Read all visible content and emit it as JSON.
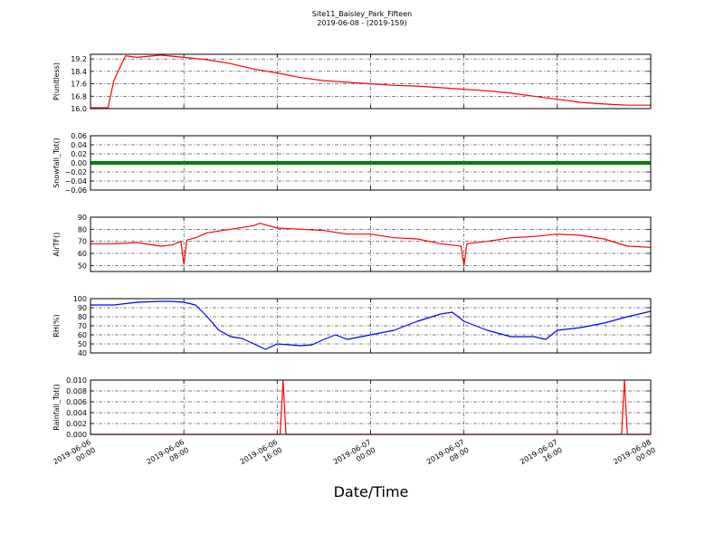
{
  "figure": {
    "title_line1": "Site11_Baisley_Park_Fifteen",
    "title_line2": "2019-06-08 - (2019-159)",
    "xlabel": "Date/Time"
  },
  "chart_data": {
    "type": "line",
    "x_range": [
      "2019-06-06 00:00",
      "2019-06-08 00:00"
    ],
    "x_ticks": [
      "2019-06-06 00:00",
      "2019-06-06 08:00",
      "2019-06-06 16:00",
      "2019-06-07 00:00",
      "2019-06-07 08:00",
      "2019-06-07 16:00",
      "2019-06-08 00:00"
    ],
    "x_tick_labels": [
      [
        "2019-06-06",
        "00:00"
      ],
      [
        "2019-06-06",
        "08:00"
      ],
      [
        "2019-06-06",
        "16:00"
      ],
      [
        "2019-06-07",
        "00:00"
      ],
      [
        "2019-06-07",
        "08:00"
      ],
      [
        "2019-06-07",
        "16:00"
      ],
      [
        "2019-06-08",
        "00:00"
      ]
    ],
    "grid": true,
    "panels": [
      {
        "ylabel": "P(unitless)",
        "ylim": [
          16.0,
          19.5
        ],
        "yticks": [
          16.0,
          16.8,
          17.6,
          18.4,
          19.2
        ],
        "ytick_labels": [
          "16.0",
          "16.8",
          "17.6",
          "18.4",
          "19.2"
        ],
        "color": "#ff0000",
        "series": [
          {
            "x": [
              "2019-06-06 00:00",
              "2019-06-06 01:00",
              "2019-06-06 01:30",
              "2019-06-06 02:00",
              "2019-06-06 02:30",
              "2019-06-06 03:00",
              "2019-06-06 04:00",
              "2019-06-06 06:00",
              "2019-06-06 08:00",
              "2019-06-06 10:00",
              "2019-06-06 12:00",
              "2019-06-06 14:00",
              "2019-06-06 16:00",
              "2019-06-06 18:00",
              "2019-06-06 20:00",
              "2019-06-06 22:00",
              "2019-06-07 00:00",
              "2019-06-07 02:00",
              "2019-06-07 04:00",
              "2019-06-07 06:00",
              "2019-06-07 08:00",
              "2019-06-07 10:00",
              "2019-06-07 12:00",
              "2019-06-07 14:00",
              "2019-06-07 16:00",
              "2019-06-07 18:00",
              "2019-06-07 20:00",
              "2019-06-07 22:00",
              "2019-06-08 00:00"
            ],
            "y": [
              16.05,
              16.05,
              16.05,
              17.8,
              18.6,
              19.4,
              19.3,
              19.45,
              19.3,
              19.15,
              18.9,
              18.55,
              18.3,
              18.0,
              17.8,
              17.7,
              17.6,
              17.5,
              17.45,
              17.35,
              17.25,
              17.15,
              17.0,
              16.8,
              16.6,
              16.4,
              16.3,
              16.22,
              16.22
            ]
          }
        ]
      },
      {
        "ylabel": "Snowfall_Tot()",
        "ylim": [
          -0.06,
          0.06
        ],
        "yticks": [
          -0.06,
          -0.04,
          -0.02,
          0.0,
          0.02,
          0.04,
          0.06
        ],
        "ytick_labels": [
          "−0.06",
          "−0.04",
          "−0.02",
          "0.00",
          "0.02",
          "0.04",
          "0.06"
        ],
        "color": "#008000",
        "series": [
          {
            "x": [
              "2019-06-06 00:00",
              "2019-06-08 00:00"
            ],
            "y": [
              0.0,
              0.0
            ]
          }
        ]
      },
      {
        "ylabel": "AirTF()",
        "ylim": [
          45,
          90
        ],
        "yticks": [
          50,
          60,
          70,
          80,
          90
        ],
        "ytick_labels": [
          "50",
          "60",
          "70",
          "80",
          "90"
        ],
        "color": "#ff0000",
        "series": [
          {
            "x": [
              "2019-06-06 00:00",
              "2019-06-06 02:00",
              "2019-06-06 04:00",
              "2019-06-06 06:00",
              "2019-06-06 07:00",
              "2019-06-06 07:45",
              "2019-06-06 08:00",
              "2019-06-06 08:15",
              "2019-06-06 09:00",
              "2019-06-06 10:00",
              "2019-06-06 12:00",
              "2019-06-06 14:00",
              "2019-06-06 14:30",
              "2019-06-06 16:00",
              "2019-06-06 18:00",
              "2019-06-06 20:00",
              "2019-06-06 22:00",
              "2019-06-07 00:00",
              "2019-06-07 02:00",
              "2019-06-07 04:00",
              "2019-06-07 06:00",
              "2019-06-07 07:45",
              "2019-06-07 08:00",
              "2019-06-07 08:15",
              "2019-06-07 10:00",
              "2019-06-07 12:00",
              "2019-06-07 14:00",
              "2019-06-07 16:00",
              "2019-06-07 18:00",
              "2019-06-07 20:00",
              "2019-06-07 22:00",
              "2019-06-08 00:00"
            ],
            "y": [
              68,
              68,
              69,
              66,
              67,
              70,
              51,
              71,
              73,
              77,
              80,
              83,
              85,
              81,
              80,
              79,
              76,
              76,
              73,
              72,
              68,
              66,
              50,
              68,
              70,
              73,
              74,
              76,
              75,
              72,
              66,
              65
            ]
          }
        ]
      },
      {
        "ylabel": "RH(%)",
        "ylim": [
          40,
          100
        ],
        "yticks": [
          40,
          50,
          60,
          70,
          80,
          90,
          100
        ],
        "ytick_labels": [
          "40",
          "50",
          "60",
          "70",
          "80",
          "90",
          "100"
        ],
        "color": "#0000ff",
        "series": [
          {
            "x": [
              "2019-06-06 00:00",
              "2019-06-06 02:00",
              "2019-06-06 04:00",
              "2019-06-06 06:00",
              "2019-06-06 07:00",
              "2019-06-06 08:00",
              "2019-06-06 09:00",
              "2019-06-06 10:00",
              "2019-06-06 11:00",
              "2019-06-06 12:00",
              "2019-06-06 13:00",
              "2019-06-06 14:00",
              "2019-06-06 15:00",
              "2019-06-06 16:00",
              "2019-06-06 18:00",
              "2019-06-06 19:00",
              "2019-06-06 20:00",
              "2019-06-06 21:00",
              "2019-06-06 22:00",
              "2019-06-07 00:00",
              "2019-06-07 02:00",
              "2019-06-07 04:00",
              "2019-06-07 06:00",
              "2019-06-07 07:00",
              "2019-06-07 08:00",
              "2019-06-07 10:00",
              "2019-06-07 12:00",
              "2019-06-07 14:00",
              "2019-06-07 15:00",
              "2019-06-07 16:00",
              "2019-06-07 18:00",
              "2019-06-07 20:00",
              "2019-06-07 22:00",
              "2019-06-08 00:00"
            ],
            "y": [
              93,
              93,
              96,
              97,
              97,
              96,
              93,
              80,
              65,
              58,
              56,
              50,
              44,
              50,
              48,
              49,
              55,
              60,
              55,
              60,
              65,
              75,
              83,
              85,
              75,
              65,
              58,
              58,
              55,
              65,
              68,
              73,
              80,
              86
            ]
          }
        ]
      },
      {
        "ylabel": "Rainfall_Tot()",
        "ylim": [
          0.0,
          0.01
        ],
        "yticks": [
          0.0,
          0.002,
          0.004,
          0.006,
          0.008,
          0.01
        ],
        "ytick_labels": [
          "0.000",
          "0.002",
          "0.004",
          "0.006",
          "0.008",
          "0.010"
        ],
        "color": "#ff0000",
        "series": [
          {
            "x": [
              "2019-06-06 00:00",
              "2019-06-06 16:15",
              "2019-06-06 16:30",
              "2019-06-06 16:45",
              "2019-06-07 21:30",
              "2019-06-07 21:45",
              "2019-06-07 22:00",
              "2019-06-08 00:00"
            ],
            "y": [
              0,
              0,
              0.01,
              0,
              0,
              0.01,
              0,
              0
            ]
          }
        ]
      }
    ]
  }
}
